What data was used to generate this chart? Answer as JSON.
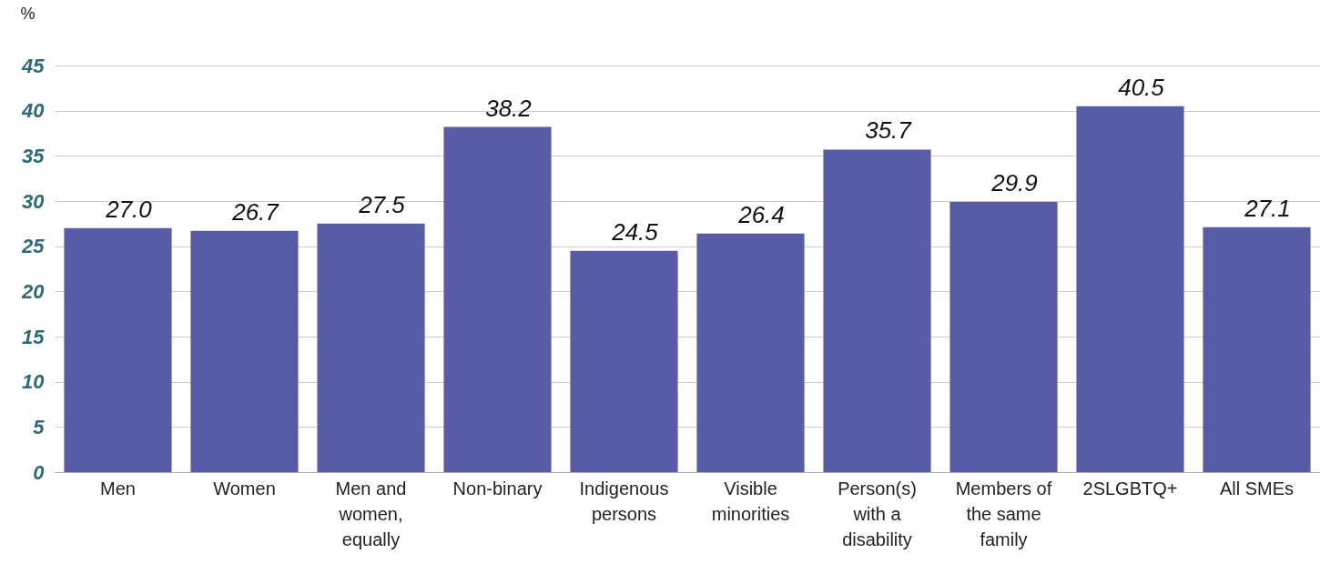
{
  "chart_data": {
    "type": "bar",
    "ylabel": "%",
    "categories": [
      "Men",
      "Women",
      "Men and women, equally",
      "Non-binary",
      "Indigenous persons",
      "Visible minorities",
      "Person(s) with a disability",
      "Members of the same family",
      "2SLGBTQ+",
      "All SMEs"
    ],
    "values": [
      27.0,
      26.7,
      27.5,
      38.2,
      24.5,
      26.4,
      35.7,
      29.9,
      40.5,
      27.1
    ],
    "value_labels": [
      "27.0",
      "26.7",
      "27.5",
      "38.2",
      "24.5",
      "26.4",
      "35.7",
      "29.9",
      "40.5",
      "27.1"
    ],
    "color": "#585ba6",
    "ylim": [
      0,
      45
    ],
    "yticks": [
      0,
      5,
      10,
      15,
      20,
      25,
      30,
      35,
      40,
      45
    ],
    "grid": "y"
  }
}
